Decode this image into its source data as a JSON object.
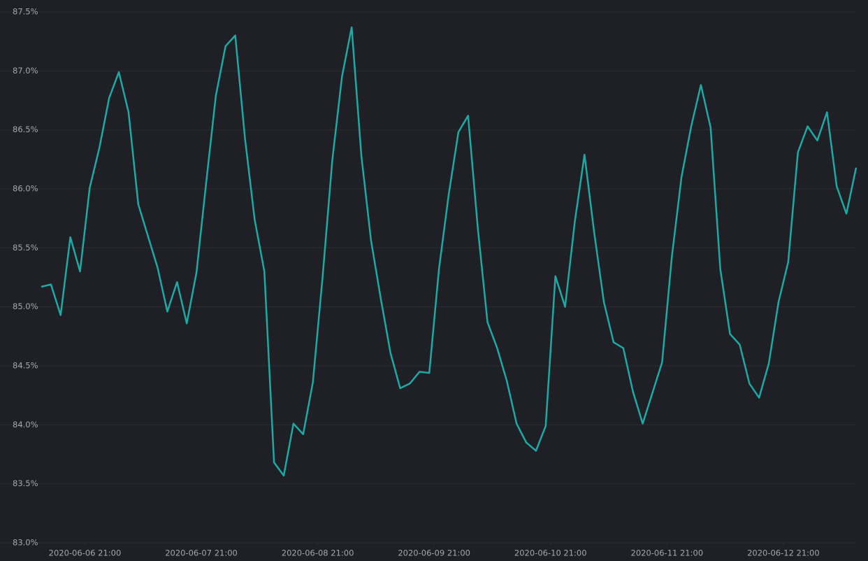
{
  "chart_data": {
    "type": "line",
    "x": [
      "2020-06-06 12:00",
      "2020-06-06 14:00",
      "2020-06-06 16:00",
      "2020-06-06 18:00",
      "2020-06-06 20:00",
      "2020-06-06 22:00",
      "2020-06-07 00:00",
      "2020-06-07 02:00",
      "2020-06-07 04:00",
      "2020-06-07 06:00",
      "2020-06-07 08:00",
      "2020-06-07 10:00",
      "2020-06-07 12:00",
      "2020-06-07 14:00",
      "2020-06-07 16:00",
      "2020-06-07 18:00",
      "2020-06-07 20:00",
      "2020-06-07 22:00",
      "2020-06-08 00:00",
      "2020-06-08 02:00",
      "2020-06-08 04:00",
      "2020-06-08 06:00",
      "2020-06-08 08:00",
      "2020-06-08 10:00",
      "2020-06-08 12:00",
      "2020-06-08 14:00",
      "2020-06-08 16:00",
      "2020-06-08 18:00",
      "2020-06-08 20:00",
      "2020-06-08 22:00",
      "2020-06-09 00:00",
      "2020-06-09 02:00",
      "2020-06-09 04:00",
      "2020-06-09 06:00",
      "2020-06-09 08:00",
      "2020-06-09 10:00",
      "2020-06-09 12:00",
      "2020-06-09 14:00",
      "2020-06-09 16:00",
      "2020-06-09 18:00",
      "2020-06-09 20:00",
      "2020-06-09 22:00",
      "2020-06-10 00:00",
      "2020-06-10 02:00",
      "2020-06-10 04:00",
      "2020-06-10 06:00",
      "2020-06-10 08:00",
      "2020-06-10 10:00",
      "2020-06-10 12:00",
      "2020-06-10 14:00",
      "2020-06-10 16:00",
      "2020-06-10 18:00",
      "2020-06-10 20:00",
      "2020-06-10 22:00",
      "2020-06-11 00:00",
      "2020-06-11 02:00",
      "2020-06-11 04:00",
      "2020-06-11 06:00",
      "2020-06-11 08:00",
      "2020-06-11 10:00",
      "2020-06-11 12:00",
      "2020-06-11 14:00",
      "2020-06-11 16:00",
      "2020-06-11 18:00",
      "2020-06-11 20:00",
      "2020-06-11 22:00",
      "2020-06-12 00:00",
      "2020-06-12 02:00",
      "2020-06-12 04:00",
      "2020-06-12 06:00",
      "2020-06-12 08:00",
      "2020-06-12 10:00",
      "2020-06-12 12:00",
      "2020-06-12 14:00",
      "2020-06-12 16:00",
      "2020-06-12 18:00",
      "2020-06-12 20:00",
      "2020-06-12 22:00",
      "2020-06-13 00:00",
      "2020-06-13 02:00",
      "2020-06-13 04:00",
      "2020-06-13 06:00",
      "2020-06-13 08:00",
      "2020-06-13 10:00",
      "2020-06-13 12:00"
    ],
    "series": [
      {
        "color": "#1ea9a4",
        "values": [
          85.17,
          85.19,
          84.93,
          85.59,
          85.3,
          86.01,
          86.35,
          86.77,
          86.99,
          86.65,
          85.87,
          85.6,
          85.33,
          84.96,
          85.21,
          84.86,
          85.29,
          86.05,
          86.79,
          87.21,
          87.3,
          86.43,
          85.74,
          85.3,
          83.68,
          83.57,
          84.01,
          83.92,
          84.36,
          85.25,
          86.24,
          86.95,
          87.37,
          86.28,
          85.56,
          85.07,
          84.61,
          84.31,
          84.35,
          84.45,
          84.44,
          85.32,
          85.95,
          86.48,
          86.62,
          85.67,
          84.87,
          84.65,
          84.37,
          84.01,
          83.85,
          83.78,
          83.99,
          85.26,
          85.0,
          85.72,
          86.29,
          85.63,
          85.04,
          84.7,
          84.65,
          84.28,
          84.01,
          84.27,
          84.53,
          85.42,
          86.1,
          86.53,
          86.88,
          86.52,
          85.32,
          84.77,
          84.68,
          84.35,
          84.23,
          84.52,
          85.04,
          85.38,
          86.31,
          86.53,
          86.41,
          86.65,
          86.02,
          85.79,
          86.18
        ]
      }
    ],
    "xlim": [
      "2020-06-06 12:00",
      "2020-06-13 12:00"
    ],
    "xticks": [
      "2020-06-06 21:00",
      "2020-06-07 21:00",
      "2020-06-08 21:00",
      "2020-06-09 21:00",
      "2020-06-10 21:00",
      "2020-06-11 21:00",
      "2020-06-12 21:00"
    ],
    "ylim": [
      83.0,
      87.5
    ],
    "yticks": [
      {
        "value": 83.0,
        "label": "83.0%"
      },
      {
        "value": 83.5,
        "label": "83.5%"
      },
      {
        "value": 84.0,
        "label": "84.0%"
      },
      {
        "value": 84.5,
        "label": "84.5%"
      },
      {
        "value": 85.0,
        "label": "85.0%"
      },
      {
        "value": 85.5,
        "label": "85.5%"
      },
      {
        "value": 86.0,
        "label": "86.0%"
      },
      {
        "value": 86.5,
        "label": "86.5%"
      },
      {
        "value": 87.0,
        "label": "87.0%"
      },
      {
        "value": 87.5,
        "label": "87.5%"
      }
    ],
    "grid": true
  }
}
